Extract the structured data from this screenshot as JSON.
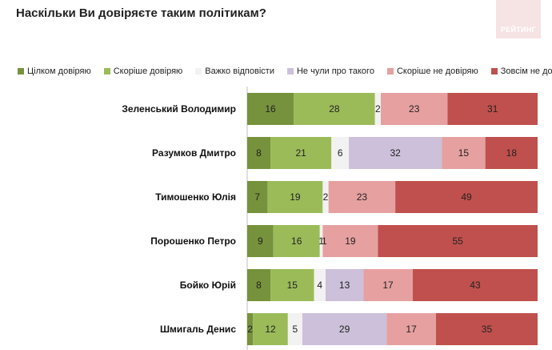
{
  "title": "Наскільки Ви довіряєте таким політикам?",
  "logo_text": "РЕЙТИНГ",
  "chart_data": {
    "type": "bar",
    "orientation": "horizontal",
    "stacked": true,
    "normalized": true,
    "legend_placement": "top",
    "categories": [
      "Зеленський Володимир",
      "Разумков Дмитро",
      "Тимошенко Юлія",
      "Порошенко Петро",
      "Бойко Юрій",
      "Шмигаль Денис"
    ],
    "series": [
      {
        "name": "Цілком довіряю",
        "color": "#76923c",
        "values": [
          16,
          8,
          7,
          9,
          8,
          2
        ]
      },
      {
        "name": "Скоріше довіряю",
        "color": "#9bbb59",
        "values": [
          28,
          21,
          19,
          16,
          15,
          12
        ]
      },
      {
        "name": "Важко відповісти",
        "color": "#f2f2f2",
        "values": [
          2,
          6,
          2,
          1,
          4,
          5
        ]
      },
      {
        "name": "Не чули про такого",
        "color": "#ccc0da",
        "values": [
          0,
          32,
          0,
          0,
          13,
          29
        ]
      },
      {
        "name": "Скоріше не довіряю",
        "color": "#e6a0a0",
        "values": [
          23,
          15,
          23,
          19,
          17,
          17
        ]
      },
      {
        "name": "Зовсім не довіряю",
        "color": "#c0504d",
        "values": [
          31,
          18,
          49,
          55,
          43,
          35
        ]
      }
    ],
    "extra_labels": [
      {
        "category_index": 3,
        "text": "1"
      }
    ]
  }
}
